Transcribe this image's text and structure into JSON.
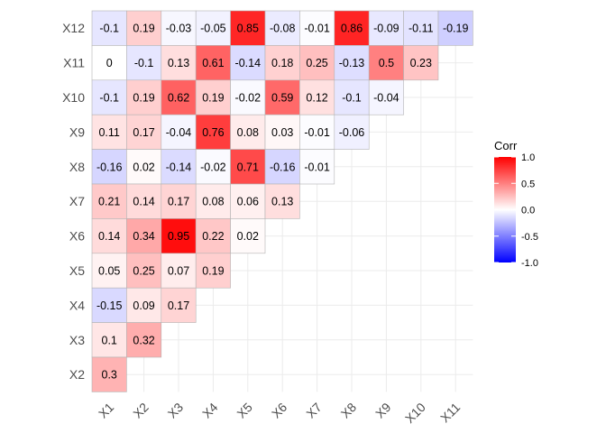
{
  "chart_data": {
    "type": "heatmap",
    "title": "",
    "xlabel": "",
    "ylabel": "",
    "x_categories": [
      "X1",
      "X2",
      "X3",
      "X4",
      "X5",
      "X6",
      "X7",
      "X8",
      "X9",
      "X10",
      "X11"
    ],
    "y_categories": [
      "X2",
      "X3",
      "X4",
      "X5",
      "X6",
      "X7",
      "X8",
      "X9",
      "X10",
      "X11",
      "X12"
    ],
    "rows": [
      {
        "y": "X12",
        "values": [
          -0.1,
          0.19,
          -0.03,
          -0.05,
          0.85,
          -0.08,
          -0.01,
          0.86,
          -0.09,
          -0.11,
          -0.19
        ]
      },
      {
        "y": "X11",
        "values": [
          0,
          -0.1,
          0.13,
          0.61,
          -0.14,
          0.18,
          0.25,
          -0.13,
          0.5,
          0.23
        ]
      },
      {
        "y": "X10",
        "values": [
          -0.1,
          0.19,
          0.62,
          0.19,
          -0.02,
          0.59,
          0.12,
          -0.1,
          -0.04
        ]
      },
      {
        "y": "X9",
        "values": [
          0.11,
          0.17,
          -0.04,
          0.76,
          0.08,
          0.03,
          -0.01,
          -0.06
        ]
      },
      {
        "y": "X8",
        "values": [
          -0.16,
          0.02,
          -0.14,
          -0.02,
          0.71,
          -0.16,
          -0.01
        ]
      },
      {
        "y": "X7",
        "values": [
          0.21,
          0.14,
          0.17,
          0.08,
          0.06,
          0.13
        ]
      },
      {
        "y": "X6",
        "values": [
          0.14,
          0.34,
          0.95,
          0.22,
          0.02
        ]
      },
      {
        "y": "X5",
        "values": [
          0.05,
          0.25,
          0.07,
          0.19
        ]
      },
      {
        "y": "X4",
        "values": [
          -0.15,
          0.09,
          0.17
        ]
      },
      {
        "y": "X3",
        "values": [
          0.1,
          0.32
        ]
      },
      {
        "y": "X2",
        "values": [
          0.3
        ]
      }
    ],
    "legend": {
      "title": "Corr",
      "placement": "right",
      "range": [
        -1,
        1
      ],
      "ticks": [
        "1.0",
        "0.5",
        "0.0",
        "-0.5",
        "-1.0"
      ],
      "tick_values": [
        1,
        0.5,
        0,
        -0.5,
        -1
      ]
    },
    "colors": {
      "low": "#0000ff",
      "mid": "#ffffff",
      "high": "#ff0000",
      "grid": "#ebebeb",
      "tile_border": "#b3b3b3"
    },
    "grid": true
  }
}
